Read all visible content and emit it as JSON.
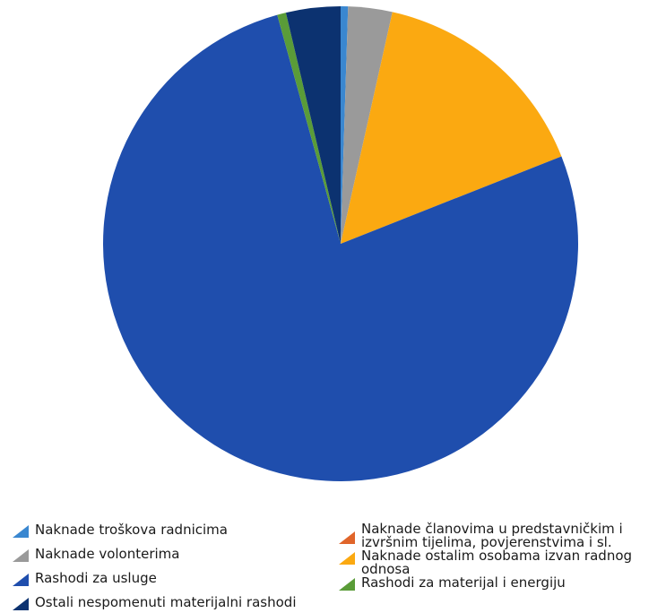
{
  "chart_data": {
    "type": "pie",
    "title": "",
    "slices": [
      {
        "label": "Naknade troškova radnicima",
        "value": 0.5,
        "color": "#3a87d0"
      },
      {
        "label": "Naknade članovima u predstavničkim i izvršnim tijelima, povjerenstvima i sl.",
        "value": 0.0,
        "color": "#e0652a"
      },
      {
        "label": "Naknade volonterima",
        "value": 3.0,
        "color": "#9a9a9a"
      },
      {
        "label": "Naknade ostalim osobama izvan radnog odnosa",
        "value": 15.5,
        "color": "#fba911"
      },
      {
        "label": "Rashodi za usluge",
        "value": 76.7,
        "color": "#1f4ead"
      },
      {
        "label": "Rashodi za materijal i energiju",
        "value": 0.6,
        "color": "#5a9c38"
      },
      {
        "label": "Ostali nespomenuti materijalni rashodi",
        "value": 3.7,
        "color": "#0c3270"
      }
    ],
    "legend": [
      {
        "label": "Naknade troškova radnicima",
        "color": "#3a87d0"
      },
      {
        "label": "Naknade volonterima",
        "color": "#9a9a9a"
      },
      {
        "label": "Rashodi za usluge",
        "color": "#1f4ead"
      },
      {
        "label": "Ostali nespomenuti materijalni rashodi",
        "color": "#0c3270"
      },
      {
        "label": "Naknade članovima u predstavničkim i izvršnim tijelima, povjerenstvima i sl.",
        "color": "#e0652a"
      },
      {
        "label": "Naknade ostalim osobama izvan radnog odnosa",
        "color": "#fba911"
      },
      {
        "label": "Rashodi za materijal i energiju",
        "color": "#5a9c38"
      }
    ],
    "legend_position": "bottom"
  }
}
